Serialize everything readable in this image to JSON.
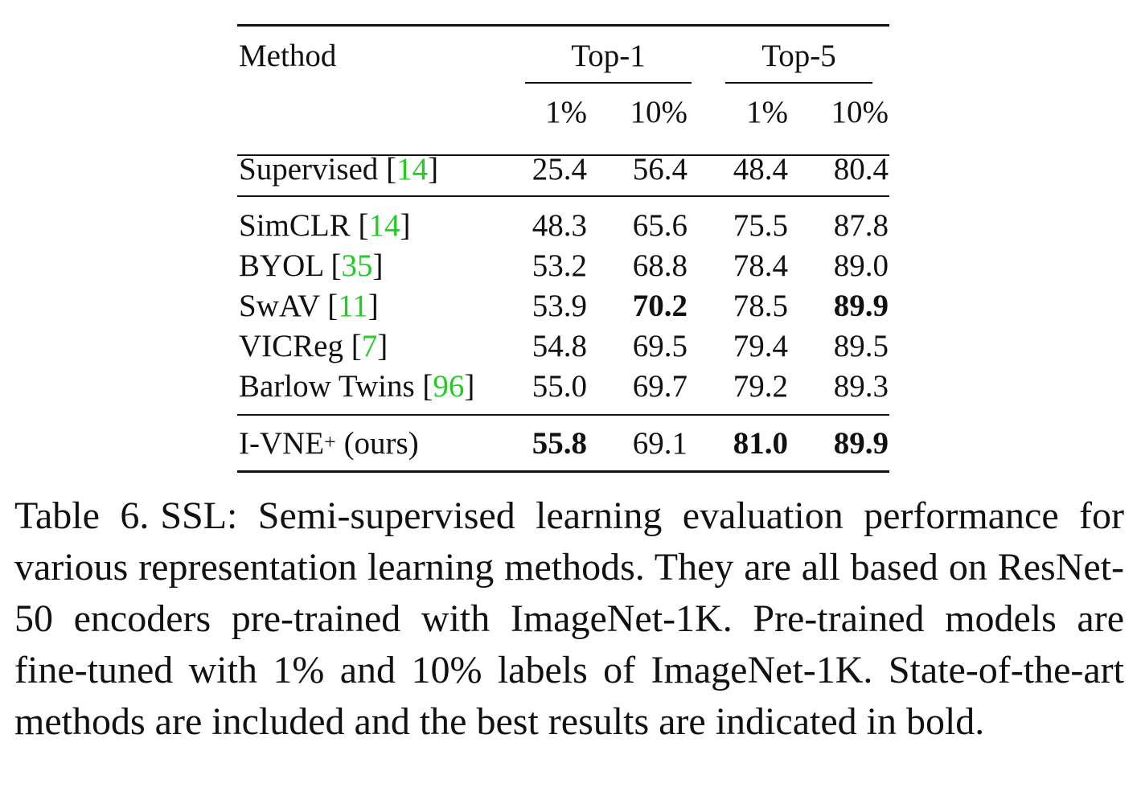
{
  "table": {
    "header": {
      "method": "Method",
      "top1": "Top-1",
      "top5": "Top-5",
      "sub": [
        "1%",
        "10%",
        "1%",
        "10%"
      ]
    },
    "rows": [
      {
        "name": "Supervised",
        "lb": " [",
        "cite": "14",
        "rb": "]",
        "suffix": "",
        "sup": "",
        "values": [
          "25.4",
          "56.4",
          "48.4",
          "80.4"
        ],
        "bold": [
          false,
          false,
          false,
          false
        ]
      },
      {
        "name": "SimCLR",
        "lb": " [",
        "cite": "14",
        "rb": "]",
        "suffix": "",
        "sup": "",
        "values": [
          "48.3",
          "65.6",
          "75.5",
          "87.8"
        ],
        "bold": [
          false,
          false,
          false,
          false
        ]
      },
      {
        "name": "BYOL",
        "lb": " [",
        "cite": "35",
        "rb": "]",
        "suffix": "",
        "sup": "",
        "values": [
          "53.2",
          "68.8",
          "78.4",
          "89.0"
        ],
        "bold": [
          false,
          false,
          false,
          false
        ]
      },
      {
        "name": "SwAV",
        "lb": " [",
        "cite": "11",
        "rb": "]",
        "suffix": "",
        "sup": "",
        "values": [
          "53.9",
          "70.2",
          "78.5",
          "89.9"
        ],
        "bold": [
          false,
          true,
          false,
          true
        ]
      },
      {
        "name": "VICReg",
        "lb": " [",
        "cite": "7",
        "rb": "]",
        "suffix": "",
        "sup": "",
        "values": [
          "54.8",
          "69.5",
          "79.4",
          "89.5"
        ],
        "bold": [
          false,
          false,
          false,
          false
        ]
      },
      {
        "name": "Barlow Twins",
        "lb": " [",
        "cite": "96",
        "rb": "]",
        "suffix": "",
        "sup": "",
        "values": [
          "55.0",
          "69.7",
          "79.2",
          "89.3"
        ],
        "bold": [
          false,
          false,
          false,
          false
        ]
      },
      {
        "name": "I-VNE",
        "lb": "",
        "cite": "",
        "rb": "",
        "sup": "+",
        "suffix": " (ours)",
        "values": [
          "55.8",
          "69.1",
          "81.0",
          "89.9"
        ],
        "bold": [
          true,
          false,
          true,
          true
        ]
      }
    ]
  },
  "caption": {
    "label": "Table 6.",
    "text": "SSL: Semi-supervised learning evaluation performance for various representation learning methods.  They are all based on ResNet-50 encoders pre-trained with ImageNet-1K. Pre-trained models are fine-tuned with 1% and 10% labels of ImageNet-1K. State-of-the-art methods are included and the best results are indi­cated in bold."
  }
}
